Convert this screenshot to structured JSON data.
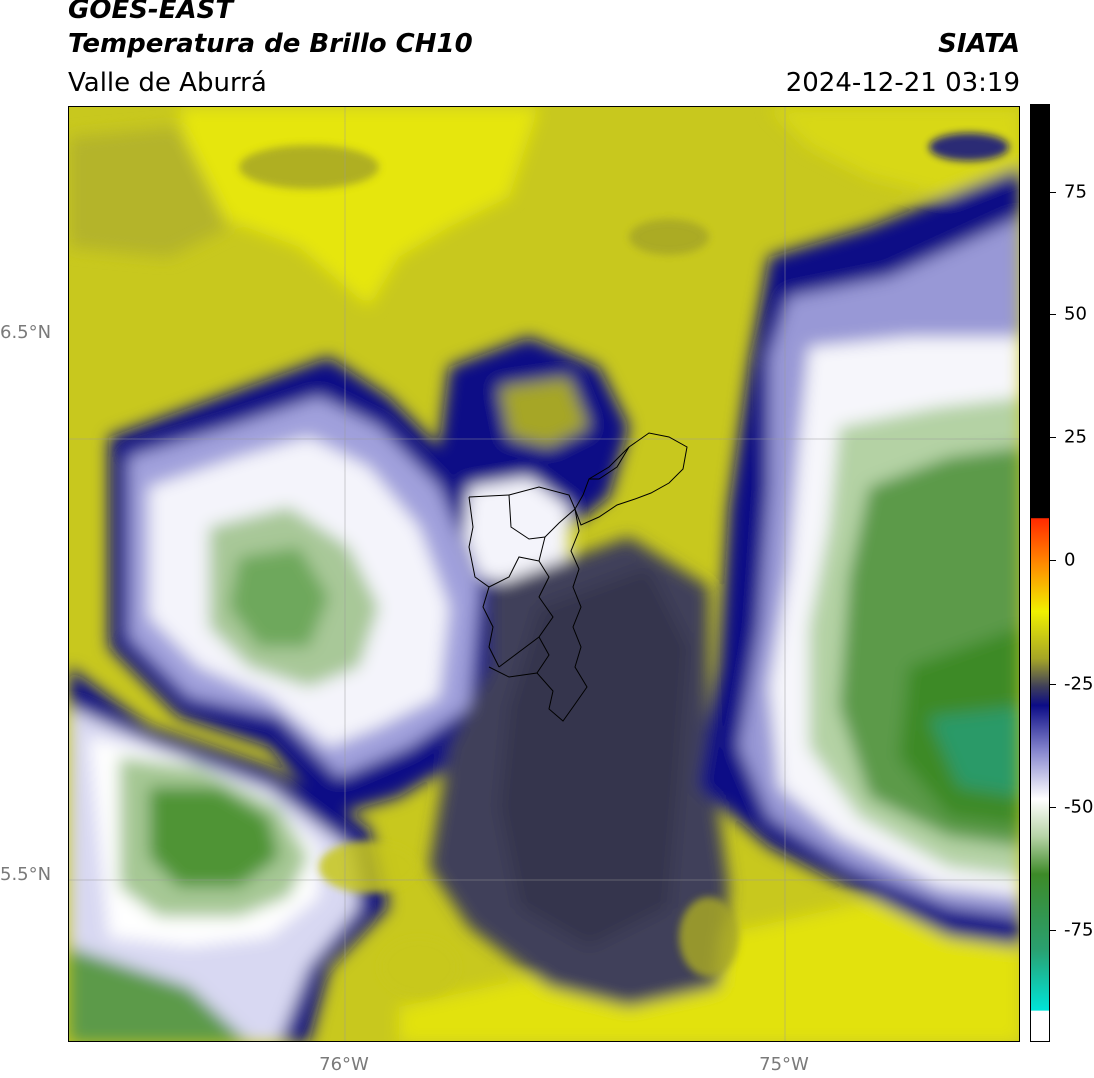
{
  "header": {
    "line1": "GOES-EAST",
    "line2": "Temperatura de Brillo CH10",
    "line3": "Valle de Aburrá",
    "org": "SIATA",
    "datetime": "2024-12-21 03:19"
  },
  "map": {
    "lat_labels": [
      "6.5°N",
      "5.5°N"
    ],
    "lon_labels": [
      "76°W",
      "75°W"
    ]
  },
  "colorbar": {
    "ticks": [
      "75",
      "50",
      "25",
      "0",
      "-25",
      "-50",
      "-75"
    ],
    "colors": {
      "black": "#000000",
      "red": "#ff2a00",
      "orange": "#ff8c00",
      "yellow": "#f0f000",
      "olive": "#a6a626",
      "darkgray": "#3f3f5a",
      "navy": "#0c0c86",
      "periwinkle": "#8a8ad0",
      "white": "#ffffff",
      "lightgreen": "#b6d3a6",
      "green": "#3d8a28",
      "teal": "#2aa070",
      "cyan": "#00e4d8"
    }
  }
}
